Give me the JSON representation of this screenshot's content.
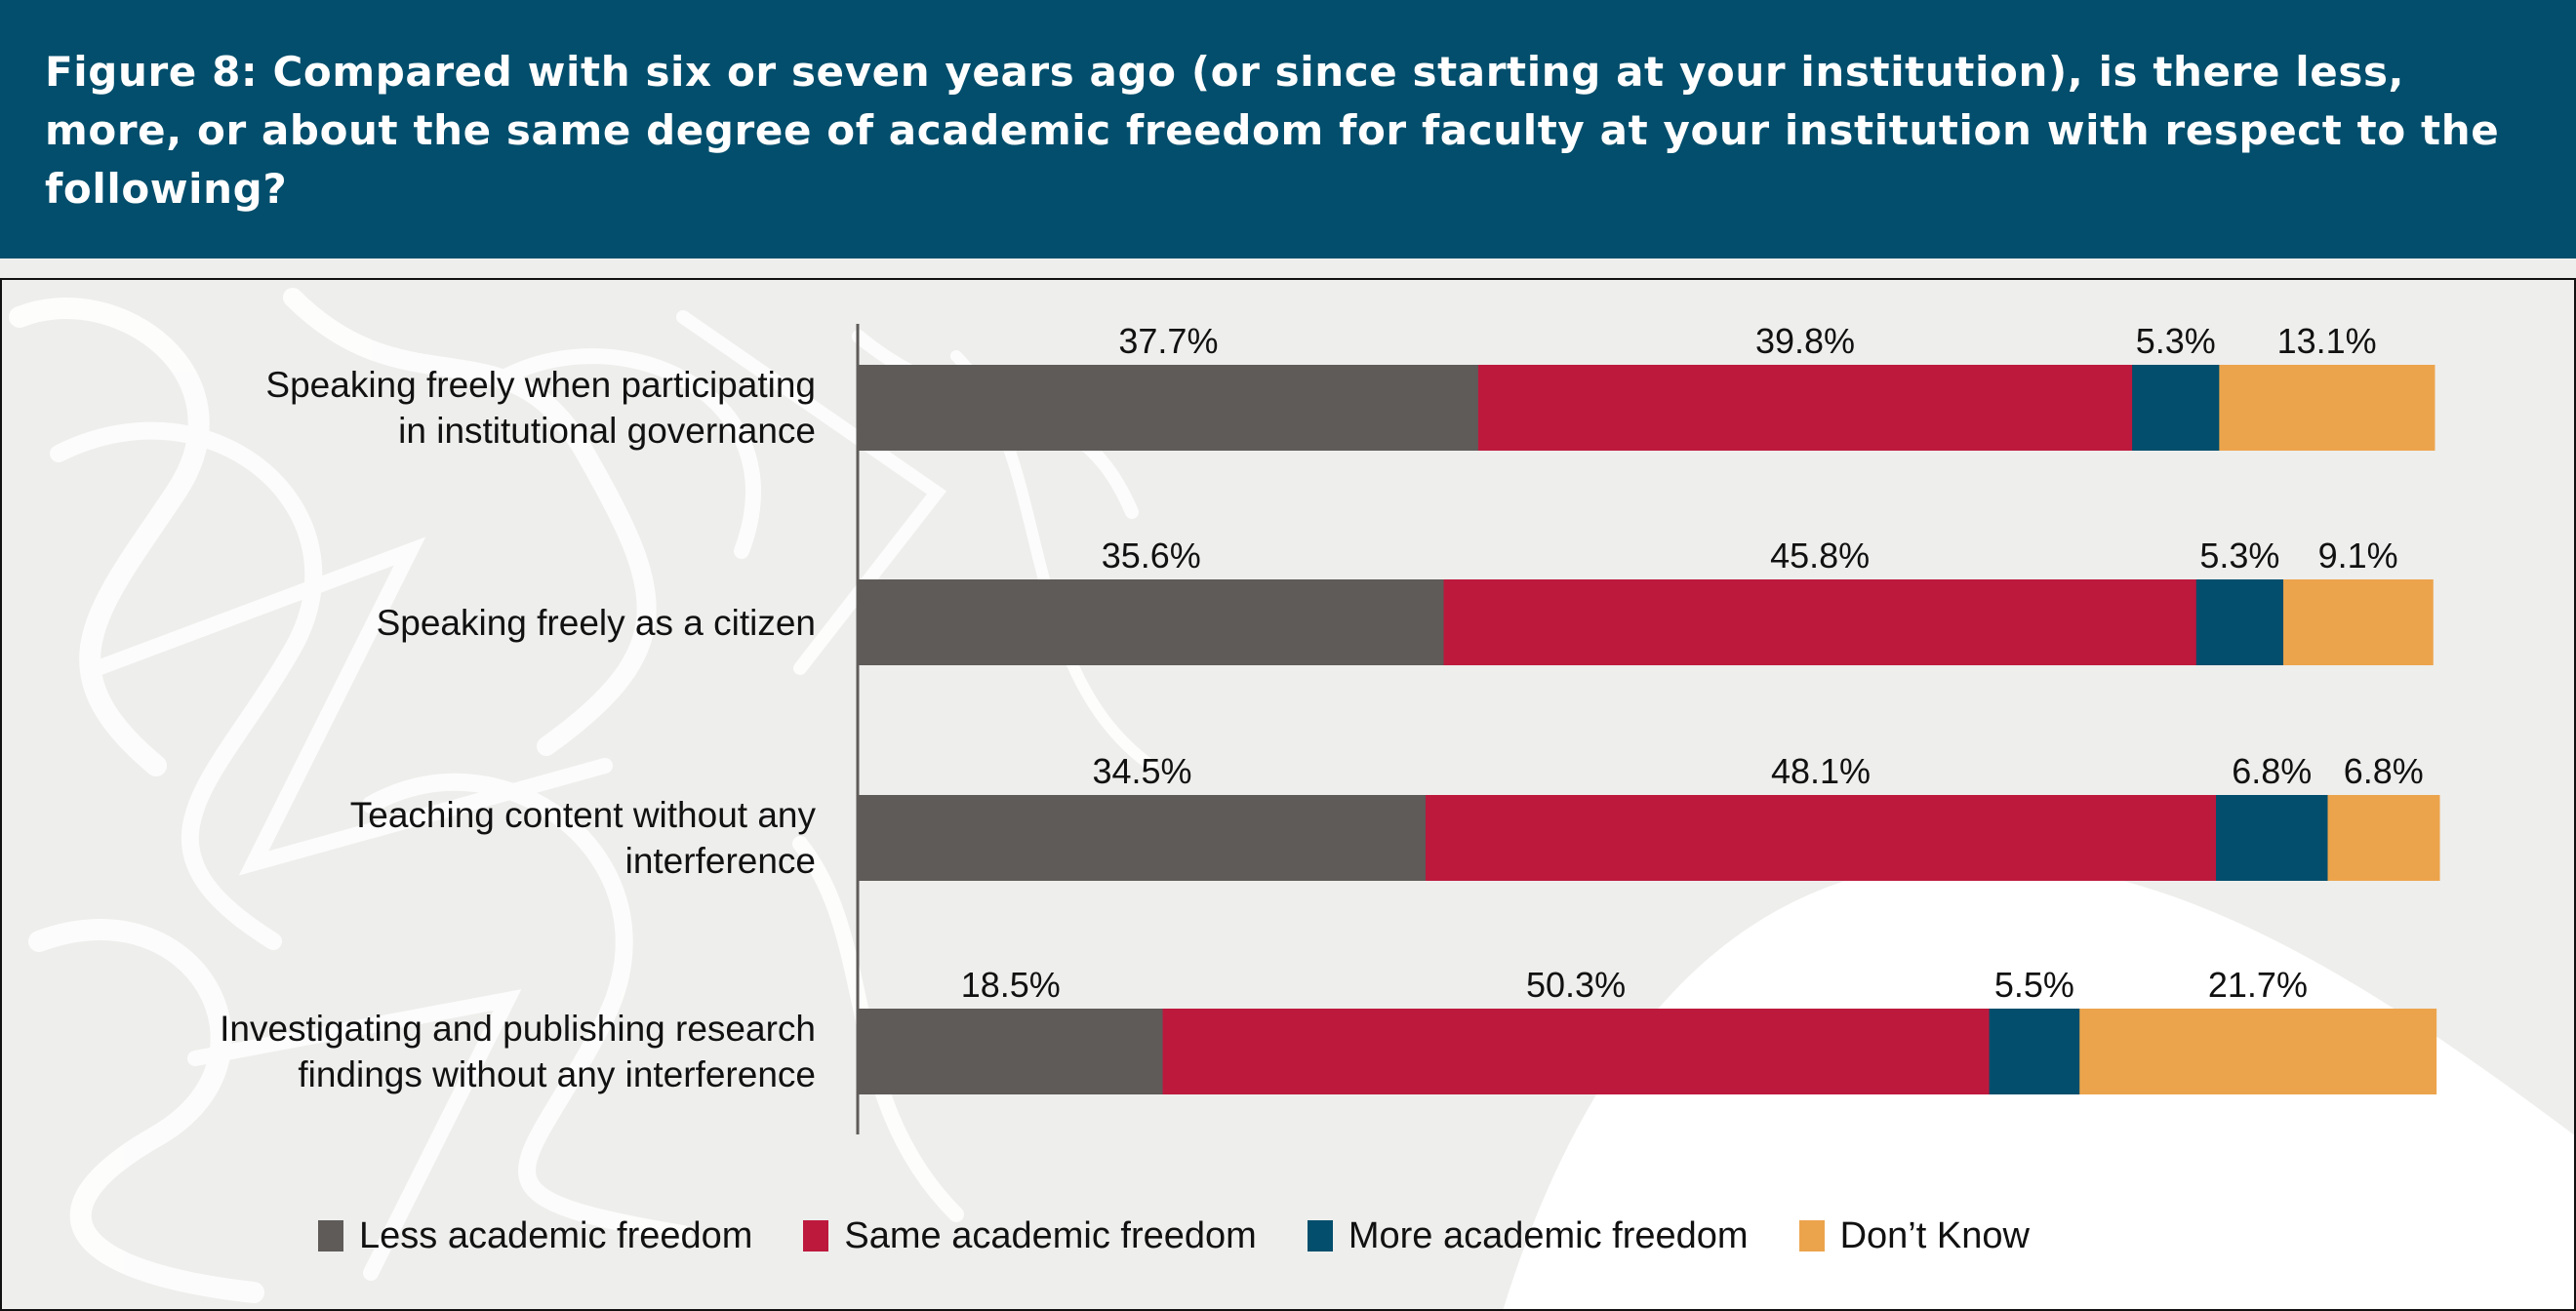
{
  "header": {
    "title": "Figure 8: Compared with six or seven years ago (or since starting at your institution), is there less, more, or about the same degree of academic freedom for faculty at your institution with respect to the following?"
  },
  "colors": {
    "header_bg": "#024e6c",
    "less": "#5e5b59",
    "same": "#bd193d",
    "more": "#024e6c",
    "dont_know": "#eca44c"
  },
  "chart_data": {
    "type": "bar",
    "orientation": "horizontal",
    "stacked": true,
    "title": "Figure 8: Compared with six or seven years ago (or since starting at your institution), is there less, more, or about the same degree of academic freedom for faculty at your institution with respect to the following?",
    "xlabel": "",
    "ylabel": "",
    "xlim": [
      0,
      100
    ],
    "grid": false,
    "legend_position": "bottom",
    "categories": [
      "Speaking freely when participating in institutional governance",
      "Speaking freely as a citizen",
      "Teaching content without any interference",
      "Investigating and publishing research findings without any interference"
    ],
    "category_lines": [
      [
        "Speaking freely when participating",
        "in institutional governance"
      ],
      [
        "Speaking freely as a citizen"
      ],
      [
        "Teaching content without any",
        "interference"
      ],
      [
        "Investigating and publishing research",
        "findings without any interference"
      ]
    ],
    "series": [
      {
        "name": "Less academic freedom",
        "color": "#5e5b59",
        "values": [
          37.7,
          35.6,
          34.5,
          18.5
        ]
      },
      {
        "name": "Same academic freedom",
        "color": "#bd193d",
        "values": [
          39.8,
          45.8,
          48.1,
          50.3
        ]
      },
      {
        "name": "More academic freedom",
        "color": "#024e6c",
        "values": [
          5.3,
          5.3,
          6.8,
          5.5
        ]
      },
      {
        "name": "Don’t Know",
        "color": "#eca44c",
        "values": [
          13.1,
          9.1,
          6.8,
          21.7
        ]
      }
    ],
    "data_labels": [
      [
        "37.7%",
        "39.8%",
        "5.3%",
        "13.1%"
      ],
      [
        "35.6%",
        "45.8%",
        "5.3%",
        "9.1%"
      ],
      [
        "34.5%",
        "48.1%",
        "6.8%",
        "6.8%"
      ],
      [
        "18.5%",
        "50.3%",
        "5.5%",
        "21.7%"
      ]
    ]
  },
  "legend": {
    "items": [
      {
        "label": "Less academic freedom",
        "color": "#5e5b59"
      },
      {
        "label": "Same academic freedom",
        "color": "#bd193d"
      },
      {
        "label": "More academic freedom",
        "color": "#024e6c"
      },
      {
        "label": "Don’t Know",
        "color": "#eca44c"
      }
    ]
  }
}
